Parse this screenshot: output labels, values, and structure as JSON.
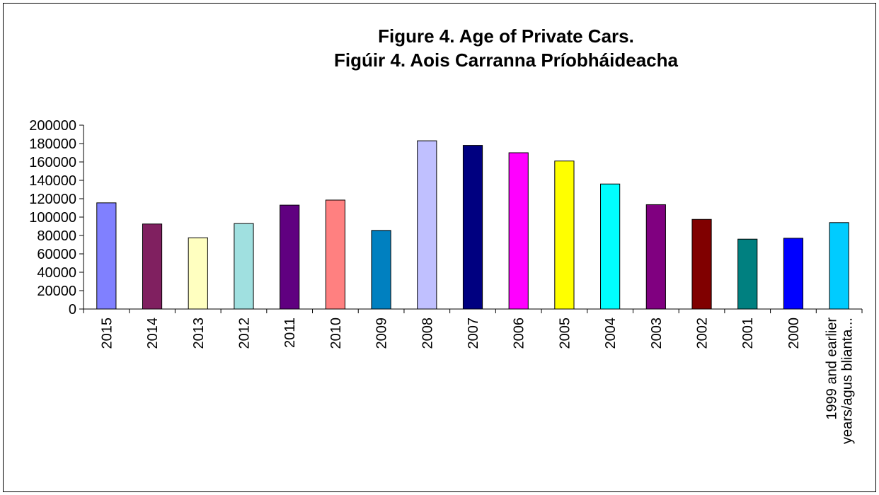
{
  "chart_data": {
    "type": "bar",
    "title_lines": [
      "Figure 4. Age of Private Cars.",
      "Figúir 4. Aois Carranna Príobháideacha"
    ],
    "xlabel": "",
    "ylabel": "",
    "ylim": [
      0,
      200000
    ],
    "yticks": [
      0,
      20000,
      40000,
      60000,
      80000,
      100000,
      120000,
      140000,
      160000,
      180000,
      200000
    ],
    "grid": false,
    "legend": "none",
    "categories": [
      [
        "2015"
      ],
      [
        "2014"
      ],
      [
        "2013"
      ],
      [
        "2012"
      ],
      [
        "2011"
      ],
      [
        "2010"
      ],
      [
        "2009"
      ],
      [
        "2008"
      ],
      [
        "2007"
      ],
      [
        "2006"
      ],
      [
        "2005"
      ],
      [
        "2004"
      ],
      [
        "2003"
      ],
      [
        "2002"
      ],
      [
        "2001"
      ],
      [
        "2000"
      ],
      [
        "1999 and earlier",
        "years/agus blianta..."
      ]
    ],
    "values": [
      115500,
      92500,
      77500,
      93000,
      113000,
      118500,
      85500,
      183000,
      178000,
      170000,
      161000,
      136000,
      113500,
      97500,
      76000,
      77000,
      94000
    ],
    "colors": [
      "#8080ff",
      "#802060",
      "#ffffc0",
      "#a0e0e0",
      "#600080",
      "#ff8080",
      "#0080c0",
      "#c0c0ff",
      "#000080",
      "#ff00ff",
      "#ffff00",
      "#00ffff",
      "#800080",
      "#800000",
      "#008080",
      "#0000ff",
      "#00ccff"
    ]
  }
}
